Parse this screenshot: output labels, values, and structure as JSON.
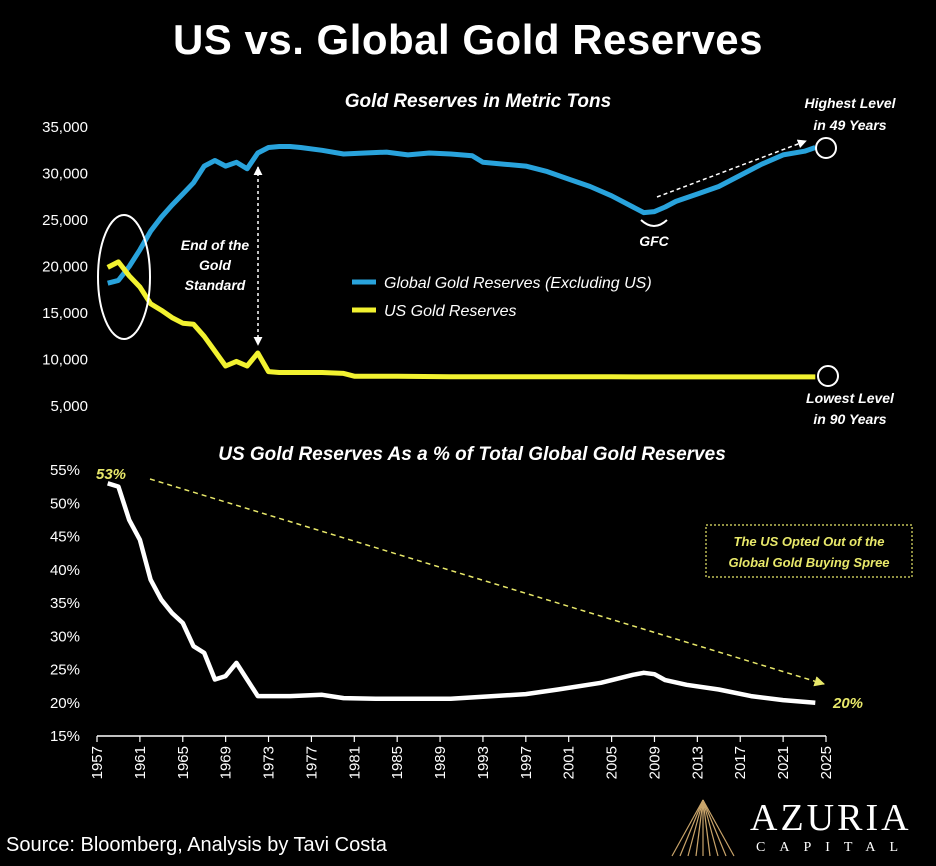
{
  "title": "US vs. Global Gold Reserves",
  "source": "Source: Bloomberg, Analysis by Tavi Costa",
  "brand": {
    "name": "AZURIA",
    "sub": "CAPITAL"
  },
  "colors": {
    "global": "#29a3dc",
    "us": "#f2f230",
    "pct": "#ffffff",
    "accent": "#e8e86a",
    "background": "#000000"
  },
  "chart_data": [
    {
      "type": "line",
      "title": "Gold Reserves in Metric Tons",
      "ylim": [
        5000,
        35000
      ],
      "yticks": [
        5000,
        10000,
        15000,
        20000,
        25000,
        30000,
        35000
      ],
      "ytick_labels": [
        "5,000",
        "10,000",
        "15,000",
        "20,000",
        "25,000",
        "30,000",
        "35,000"
      ],
      "xlim": [
        1957,
        2025
      ],
      "legend_position": "center",
      "series": [
        {
          "name": "Global Gold Reserves (Excluding US)",
          "x": [
            1958,
            1959,
            1960,
            1961,
            1962,
            1963,
            1964,
            1965,
            1966,
            1967,
            1968,
            1969,
            1970,
            1971,
            1972,
            1973,
            1974,
            1975,
            1976,
            1978,
            1980,
            1982,
            1984,
            1986,
            1988,
            1990,
            1992,
            1993,
            1995,
            1997,
            1999,
            2001,
            2003,
            2005,
            2007,
            2008,
            2009,
            2010,
            2011,
            2013,
            2015,
            2017,
            2019,
            2021,
            2023,
            2024
          ],
          "y": [
            18200,
            18500,
            20000,
            21800,
            23800,
            25300,
            26600,
            27800,
            29000,
            30800,
            31400,
            30800,
            31200,
            30500,
            32200,
            32800,
            32900,
            32900,
            32800,
            32500,
            32100,
            32200,
            32300,
            32000,
            32200,
            32100,
            31900,
            31200,
            31000,
            30800,
            30200,
            29400,
            28600,
            27600,
            26400,
            25800,
            25900,
            26400,
            27000,
            27800,
            28600,
            29800,
            31000,
            32000,
            32400,
            32800
          ]
        },
        {
          "name": "US Gold Reserves",
          "x": [
            1958,
            1959,
            1960,
            1961,
            1962,
            1963,
            1964,
            1965,
            1966,
            1967,
            1968,
            1969,
            1970,
            1971,
            1972,
            1973,
            1974,
            1976,
            1978,
            1980,
            1981,
            1985,
            1990,
            1995,
            2000,
            2005,
            2010,
            2015,
            2020,
            2024
          ],
          "y": [
            19900,
            20500,
            19000,
            17800,
            16000,
            15300,
            14500,
            13900,
            13800,
            12500,
            10900,
            9300,
            9800,
            9300,
            10700,
            8700,
            8600,
            8600,
            8600,
            8500,
            8200,
            8200,
            8150,
            8150,
            8150,
            8140,
            8130,
            8130,
            8130,
            8130
          ]
        }
      ],
      "annotations": {
        "end_gold_standard": [
          "End of the",
          "Gold",
          "Standard"
        ],
        "gfc": "GFC",
        "highest": [
          "Highest Level",
          "in 49 Years"
        ],
        "lowest": [
          "Lowest Level",
          "in 90 Years"
        ]
      }
    },
    {
      "type": "line",
      "title": "US Gold Reserves As a % of Total Global Gold Reserves",
      "ylim": [
        15,
        55
      ],
      "yticks": [
        15,
        20,
        25,
        30,
        35,
        40,
        45,
        50,
        55
      ],
      "ytick_labels": [
        "15%",
        "20%",
        "25%",
        "30%",
        "35%",
        "40%",
        "45%",
        "50%",
        "55%"
      ],
      "xlim": [
        1957,
        2025
      ],
      "xticks": [
        1957,
        1961,
        1965,
        1969,
        1973,
        1977,
        1981,
        1985,
        1989,
        1993,
        1997,
        2001,
        2005,
        2009,
        2013,
        2017,
        2021,
        2025
      ],
      "series": [
        {
          "name": "",
          "x": [
            1958,
            1959,
            1960,
            1961,
            1962,
            1963,
            1964,
            1965,
            1966,
            1967,
            1968,
            1969,
            1970,
            1971,
            1972,
            1973,
            1975,
            1978,
            1980,
            1983,
            1987,
            1990,
            1993,
            1997,
            2000,
            2004,
            2007,
            2008,
            2009,
            2010,
            2012,
            2015,
            2018,
            2021,
            2024
          ],
          "y": [
            53,
            52.5,
            47.5,
            44.5,
            38.5,
            35.5,
            33.5,
            32,
            28.5,
            27.5,
            23.5,
            24,
            26,
            23.5,
            21,
            21,
            21,
            21.2,
            20.7,
            20.6,
            20.6,
            20.6,
            20.9,
            21.3,
            22,
            23,
            24.2,
            24.5,
            24.3,
            23.4,
            22.7,
            22,
            21,
            20.4,
            20
          ]
        }
      ],
      "annotations": {
        "start_label": "53%",
        "end_label": "20%",
        "box": [
          "The US Opted Out of the",
          "Global Gold Buying Spree"
        ]
      }
    }
  ]
}
